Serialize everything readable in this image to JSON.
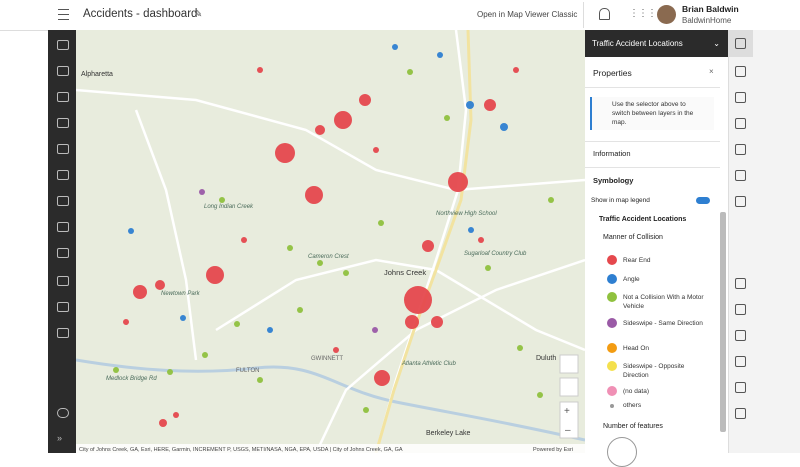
{
  "header": {
    "title": "Accidents - dashboard",
    "open_classic": "Open in Map Viewer Classic",
    "user_name": "Brian Baldwin",
    "user_org": "BaldwinHome"
  },
  "panel": {
    "layer": "Traffic Accident Locations",
    "heading": "Properties",
    "tip": "Use the selector above to switch between layers in the map.",
    "information": "Information",
    "symbology": "Symbology",
    "show_legend": "Show in map legend",
    "legend_title": "Traffic Accident Locations",
    "field": "Manner of Collision",
    "items": [
      {
        "label": "Rear End",
        "color": "#e5484d"
      },
      {
        "label": "Angle",
        "color": "#2e7fd1"
      },
      {
        "label": "Not a Collision With a Motor Vehicle",
        "color": "#8fc13e"
      },
      {
        "label": "Sideswipe - Same Direction",
        "color": "#9a5aa6"
      },
      {
        "label": "Head On",
        "color": "#f39c12"
      },
      {
        "label": "Sideswipe - Opposite Direction",
        "color": "#f4e04d"
      },
      {
        "label": "(no data)",
        "color": "#f090b5"
      }
    ],
    "others": "others",
    "size_title": "Number of features"
  },
  "map": {
    "labels": [
      "Alpharetta",
      "Johns Creek",
      "Duluth",
      "Berkeley Lake",
      "Northview High School",
      "Newtown Park",
      "Cameron Crest",
      "Long Indian Creek",
      "Sugarloaf Country Club",
      "Atlanta Athletic Club",
      "Medlock Bridge Rd",
      "GWINNETT",
      "FULTON"
    ],
    "attribution": "City of Johns Creek, GA, Esri, HERE, Garmin, INCREMENT P, USGS, METI/NASA, NGA, EPA, USDA | City of Johns Creek, GA, GA",
    "powered": "Powered by Esri"
  }
}
